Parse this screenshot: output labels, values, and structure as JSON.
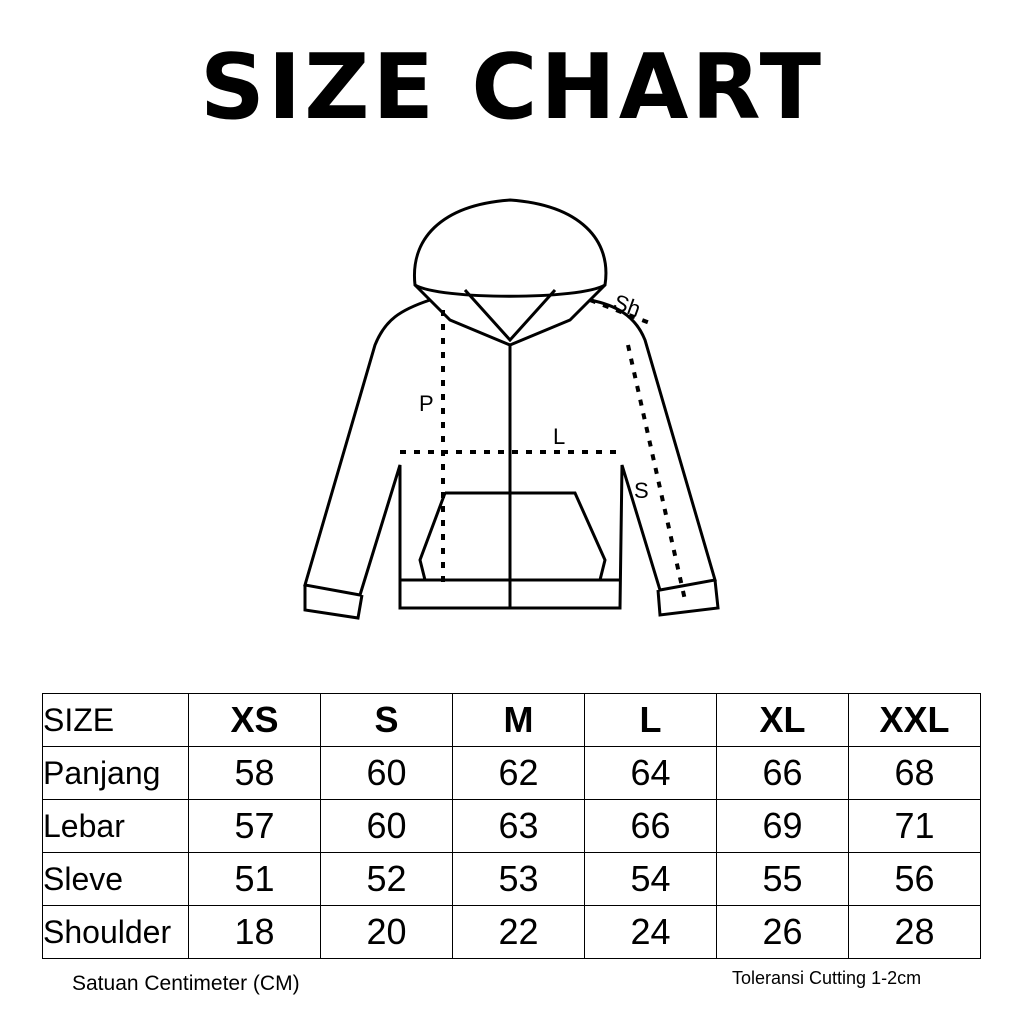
{
  "title": "SIZE CHART",
  "diagram": {
    "labels": {
      "shoulder": "Sh",
      "panjang": "P",
      "lebar": "L",
      "sleeve": "S"
    }
  },
  "table": {
    "header": [
      "SIZE",
      "XS",
      "S",
      "M",
      "L",
      "XL",
      "XXL"
    ],
    "rows": [
      {
        "label": "Panjang",
        "values": [
          "58",
          "60",
          "62",
          "64",
          "66",
          "68"
        ]
      },
      {
        "label": "Lebar",
        "values": [
          "57",
          "60",
          "63",
          "66",
          "69",
          "71"
        ]
      },
      {
        "label": "Sleve",
        "values": [
          "51",
          "52",
          "53",
          "54",
          "55",
          "56"
        ]
      },
      {
        "label": "Shoulder",
        "values": [
          "18",
          "20",
          "22",
          "24",
          "26",
          "28"
        ]
      }
    ]
  },
  "notes": {
    "unit": "Satuan Centimeter (CM)",
    "tolerance": "Toleransi Cutting 1-2cm"
  }
}
